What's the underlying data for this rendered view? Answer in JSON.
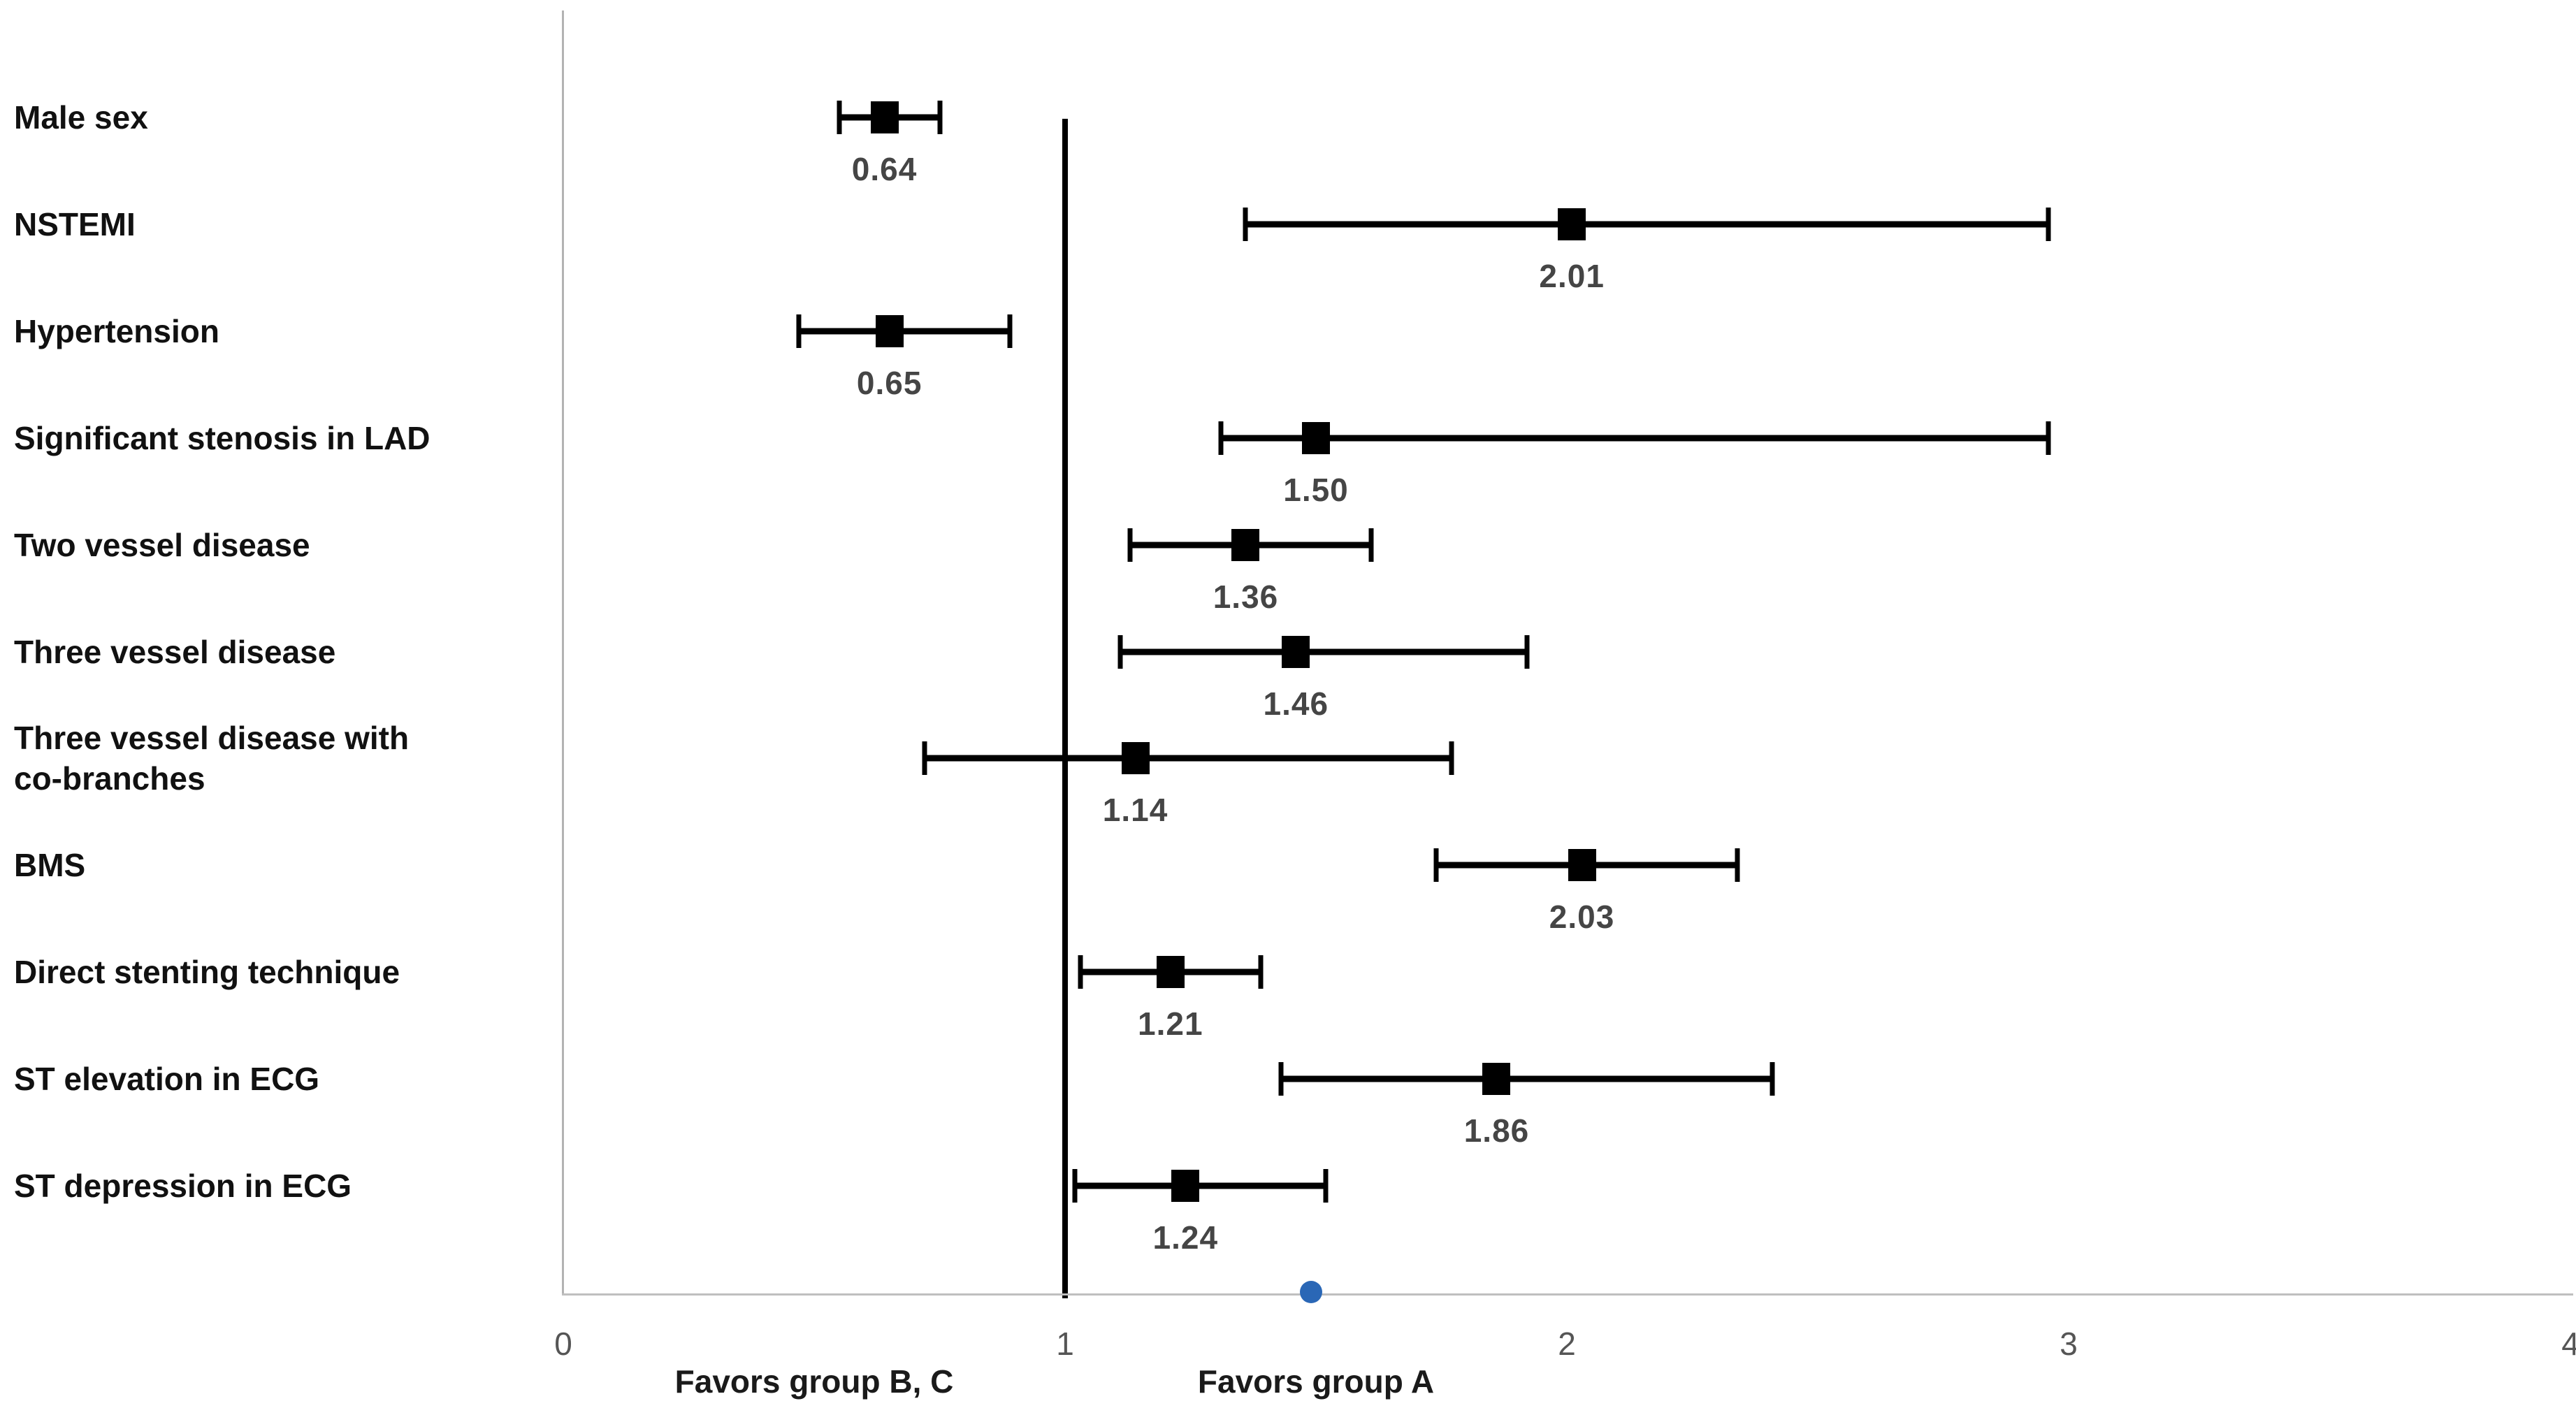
{
  "chart_data": {
    "type": "forest",
    "orientation": "horizontal",
    "title": "",
    "grid": false,
    "legend_position": "none",
    "x_axis": {
      "min": 0,
      "max": 4,
      "ticks": [
        "0",
        "1",
        "2",
        "3",
        "4"
      ],
      "reference_line_x": 1,
      "label_left": "Favors group B, C",
      "label_right": "Favors group A"
    },
    "rows": [
      {
        "label": "Male sex",
        "value": 0.64,
        "value_label": "0.64",
        "ci_low": 0.55,
        "ci_high": 0.75
      },
      {
        "label": "NSTEMI",
        "value": 2.01,
        "value_label": "2.01",
        "ci_low": 1.36,
        "ci_high": 2.96
      },
      {
        "label": "Hypertension",
        "value": 0.65,
        "value_label": "0.65",
        "ci_low": 0.47,
        "ci_high": 0.89
      },
      {
        "label": "Significant stenosis in LAD",
        "value": 1.5,
        "value_label": "1.50",
        "ci_low": 1.31,
        "ci_high": 2.96
      },
      {
        "label": "Two vessel disease",
        "value": 1.36,
        "value_label": "1.36",
        "ci_low": 1.13,
        "ci_high": 1.61
      },
      {
        "label": "Three vessel disease",
        "value": 1.46,
        "value_label": "1.46",
        "ci_low": 1.11,
        "ci_high": 1.92
      },
      {
        "label": "Three vessel disease with\nco-branches",
        "value": 1.14,
        "value_label": "1.14",
        "ci_low": 0.72,
        "ci_high": 1.77
      },
      {
        "label": "BMS",
        "value": 2.03,
        "value_label": "2.03",
        "ci_low": 1.74,
        "ci_high": 2.34
      },
      {
        "label": "Direct stenting technique",
        "value": 1.21,
        "value_label": "1.21",
        "ci_low": 1.03,
        "ci_high": 1.39
      },
      {
        "label": "ST elevation in ECG",
        "value": 1.86,
        "value_label": "1.86",
        "ci_low": 1.43,
        "ci_high": 2.41
      },
      {
        "label": "ST depression in ECG",
        "value": 1.24,
        "value_label": "1.24",
        "ci_low": 1.02,
        "ci_high": 1.52
      }
    ],
    "axis_point": {
      "value": 1.49,
      "color": "#2a67b6"
    },
    "colors": {
      "marker": "#000000",
      "ci_line": "#000000",
      "value_text": "#454545",
      "category_text": "#111111",
      "tick_text": "#555555",
      "axis_line": "#bfbfbf",
      "plot_border": "#b3b3b3",
      "reference_line": "#000000",
      "background": "#ffffff"
    }
  }
}
